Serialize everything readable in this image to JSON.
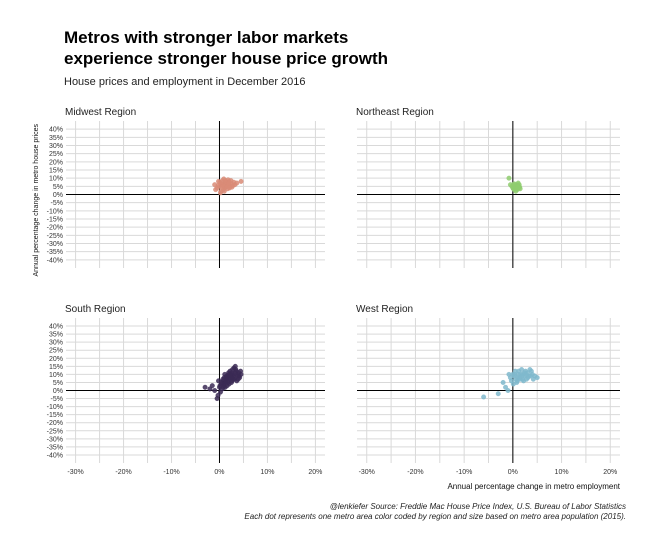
{
  "title_lines": [
    "Metros with stronger labor markets",
    "experience stronger house price growth"
  ],
  "subtitle": "House prices and employment in December 2016",
  "caption_lines": [
    "@lenkiefer Source: Freddie Mac House Price Index, U.S. Bureau of Labor Statistics",
    "Each dot represents one metro area color coded by region and size based on metro area population (2015)."
  ],
  "chart_data": {
    "type": "scatter",
    "xlabel": "Annual percentage change in metro employment",
    "ylabel": "Annual percentage change in metro house prices",
    "xlim": [
      -0.32,
      0.22
    ],
    "ylim": [
      -0.45,
      0.45
    ],
    "x_ticks": [
      -0.3,
      -0.2,
      -0.1,
      0.0,
      0.1,
      0.2
    ],
    "x_tick_labels": [
      "-30%",
      "-20%",
      "-10%",
      "0%",
      "10%",
      "20%"
    ],
    "y_ticks": [
      0.4,
      0.35,
      0.3,
      0.25,
      0.2,
      0.15,
      0.1,
      0.05,
      0.0,
      -0.05,
      -0.1,
      -0.15,
      -0.2,
      -0.25,
      -0.3,
      -0.35,
      -0.4
    ],
    "y_tick_labels": [
      "40%",
      "35%",
      "30%",
      "25%",
      "20%",
      "15%",
      "10%",
      "5%",
      "0%",
      "-5%",
      "-10%",
      "-15%",
      "-20%",
      "-25%",
      "-30%",
      "-35%",
      "-40%"
    ],
    "grid": true,
    "facets": [
      {
        "name": "Midwest Region",
        "color": "#d98b77",
        "points": [
          [
            0.0,
            0.05
          ],
          [
            0.005,
            0.06
          ],
          [
            0.01,
            0.07
          ],
          [
            0.015,
            0.055
          ],
          [
            0.02,
            0.08
          ],
          [
            0.012,
            0.045
          ],
          [
            0.008,
            0.03
          ],
          [
            -0.005,
            0.04
          ],
          [
            -0.01,
            0.06
          ],
          [
            0.025,
            0.065
          ],
          [
            0.03,
            0.075
          ],
          [
            0.018,
            0.09
          ],
          [
            0.022,
            0.05
          ],
          [
            0.003,
            0.02
          ],
          [
            0.006,
            0.085
          ],
          [
            0.013,
            0.065
          ],
          [
            0.017,
            0.035
          ],
          [
            0.028,
            0.055
          ],
          [
            0.001,
            0.075
          ],
          [
            -0.003,
            0.055
          ],
          [
            0.009,
            0.095
          ],
          [
            0.02,
            0.06
          ],
          [
            0.011,
            0.04
          ],
          [
            0.024,
            0.085
          ],
          [
            0.014,
            0.075
          ],
          [
            0.004,
            0.065
          ],
          [
            -0.008,
            0.03
          ],
          [
            0.016,
            0.05
          ],
          [
            0.007,
            0.055
          ],
          [
            0.045,
            0.08
          ],
          [
            0.036,
            0.07
          ],
          [
            0.032,
            0.06
          ],
          [
            0.019,
            0.07
          ],
          [
            0.002,
            0.01
          ],
          [
            0.01,
            0.02
          ],
          [
            0.026,
            0.045
          ],
          [
            -0.002,
            0.08
          ],
          [
            0.012,
            0.085
          ],
          [
            0.021,
            0.04
          ],
          [
            0.005,
            0.045
          ]
        ]
      },
      {
        "name": "Northeast Region",
        "color": "#8fcc6e",
        "points": [
          [
            -0.008,
            0.1
          ],
          [
            -0.005,
            0.06
          ],
          [
            0.0,
            0.04
          ],
          [
            0.003,
            0.03
          ],
          [
            0.005,
            0.05
          ],
          [
            0.008,
            0.06
          ],
          [
            0.01,
            0.04
          ],
          [
            0.012,
            0.05
          ],
          [
            0.006,
            0.02
          ],
          [
            0.002,
            0.06
          ],
          [
            0.009,
            0.03
          ],
          [
            0.014,
            0.045
          ],
          [
            0.011,
            0.07
          ],
          [
            0.004,
            0.045
          ],
          [
            -0.002,
            0.05
          ],
          [
            0.007,
            0.055
          ],
          [
            0.015,
            0.035
          ],
          [
            0.013,
            0.06
          ],
          [
            0.001,
            0.035
          ],
          [
            0.006,
            0.04
          ],
          [
            0.01,
            0.055
          ],
          [
            0.003,
            0.065
          ],
          [
            0.008,
            0.035
          ],
          [
            0.012,
            0.04
          ]
        ]
      },
      {
        "name": "South Region",
        "color": "#3b2a55",
        "points": [
          [
            -0.03,
            0.02
          ],
          [
            -0.02,
            0.01
          ],
          [
            -0.01,
            0.0
          ],
          [
            -0.005,
            -0.05
          ],
          [
            -0.003,
            -0.03
          ],
          [
            0.0,
            0.02
          ],
          [
            0.005,
            0.04
          ],
          [
            0.008,
            0.06
          ],
          [
            0.01,
            0.08
          ],
          [
            0.012,
            0.05
          ],
          [
            0.015,
            0.07
          ],
          [
            0.018,
            0.09
          ],
          [
            0.02,
            0.1
          ],
          [
            0.022,
            0.12
          ],
          [
            0.025,
            0.08
          ],
          [
            0.028,
            0.1
          ],
          [
            0.03,
            0.14
          ],
          [
            0.035,
            0.12
          ],
          [
            0.038,
            0.09
          ],
          [
            0.04,
            0.11
          ],
          [
            0.042,
            0.08
          ],
          [
            0.045,
            0.1
          ],
          [
            0.032,
            0.07
          ],
          [
            0.026,
            0.06
          ],
          [
            0.016,
            0.03
          ],
          [
            0.012,
            0.02
          ],
          [
            0.02,
            0.04
          ],
          [
            0.024,
            0.1
          ],
          [
            0.033,
            0.15
          ],
          [
            0.027,
            0.13
          ],
          [
            0.036,
            0.06
          ],
          [
            0.019,
            0.11
          ],
          [
            0.014,
            0.08
          ],
          [
            0.006,
            0.01
          ],
          [
            0.001,
            0.03
          ],
          [
            0.009,
            0.04
          ],
          [
            0.011,
            0.1
          ],
          [
            0.017,
            0.06
          ],
          [
            0.023,
            0.07
          ],
          [
            0.029,
            0.09
          ],
          [
            0.037,
            0.1
          ],
          [
            0.041,
            0.09
          ],
          [
            0.031,
            0.08
          ],
          [
            0.021,
            0.08
          ],
          [
            0.013,
            0.06
          ],
          [
            0.004,
            0.05
          ],
          [
            -0.002,
            0.06
          ],
          [
            0.007,
            0.07
          ],
          [
            0.026,
            0.11
          ],
          [
            0.034,
            0.13
          ],
          [
            0.044,
            0.12
          ],
          [
            0.039,
            0.07
          ],
          [
            0.018,
            0.05
          ],
          [
            0.01,
            0.03
          ],
          [
            0.028,
            0.07
          ],
          [
            0.015,
            0.09
          ],
          [
            0.022,
            0.09
          ],
          [
            0.025,
            0.05
          ],
          [
            0.033,
            0.11
          ],
          [
            -0.015,
            0.03
          ],
          [
            0.002,
            -0.01
          ],
          [
            0.008,
            0.02
          ]
        ]
      },
      {
        "name": "West Region",
        "color": "#7fb8cc",
        "points": [
          [
            -0.06,
            -0.04
          ],
          [
            -0.03,
            -0.02
          ],
          [
            -0.02,
            0.05
          ],
          [
            -0.01,
            0.0
          ],
          [
            -0.005,
            0.08
          ],
          [
            0.0,
            0.1
          ],
          [
            0.005,
            0.12
          ],
          [
            0.01,
            0.08
          ],
          [
            0.015,
            0.07
          ],
          [
            0.02,
            0.1
          ],
          [
            0.025,
            0.09
          ],
          [
            0.03,
            0.11
          ],
          [
            0.035,
            0.13
          ],
          [
            0.04,
            0.1
          ],
          [
            0.045,
            0.09
          ],
          [
            0.05,
            0.08
          ],
          [
            0.012,
            0.12
          ],
          [
            0.018,
            0.13
          ],
          [
            0.022,
            0.06
          ],
          [
            0.028,
            0.07
          ],
          [
            0.008,
            0.05
          ],
          [
            0.003,
            0.09
          ],
          [
            -0.003,
            0.06
          ],
          [
            0.033,
            0.09
          ],
          [
            0.038,
            0.12
          ],
          [
            0.016,
            0.1
          ],
          [
            0.026,
            0.12
          ],
          [
            0.006,
            0.07
          ],
          [
            0.001,
            0.04
          ],
          [
            0.042,
            0.07
          ],
          [
            -0.008,
            0.1
          ],
          [
            0.014,
            0.08
          ],
          [
            0.02,
            0.07
          ],
          [
            0.031,
            0.08
          ],
          [
            0.011,
            0.1
          ],
          [
            0.024,
            0.11
          ],
          [
            0.036,
            0.09
          ],
          [
            0.004,
            0.1
          ],
          [
            -0.015,
            0.02
          ],
          [
            0.009,
            0.06
          ],
          [
            0.027,
            0.1
          ],
          [
            0.019,
            0.09
          ]
        ]
      }
    ]
  }
}
